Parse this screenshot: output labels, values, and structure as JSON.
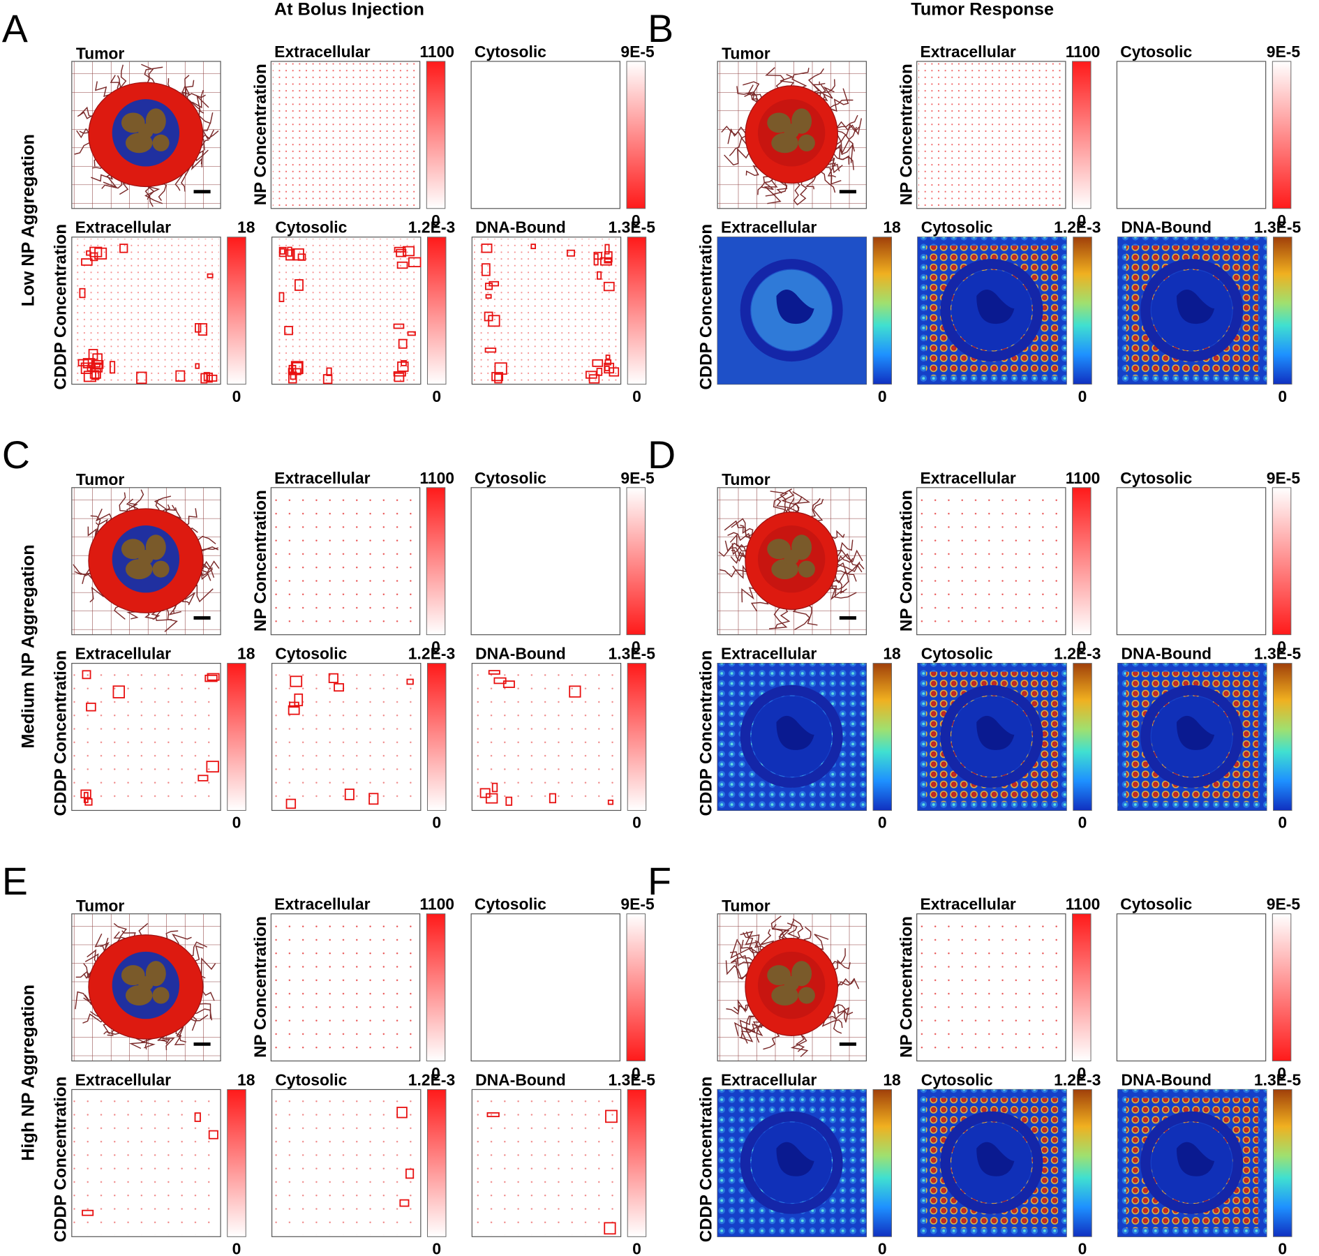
{
  "column_headers": [
    "At Bolus Injection",
    "Tumor Response"
  ],
  "row_labels": [
    "Low NP Aggregation",
    "Medium NP Aggregation",
    "High NP Aggregation"
  ],
  "panels": [
    {
      "letter": "A",
      "tumor_title": "Tumor",
      "np_axis_label": "NP Concentration",
      "cddp_axis_label": "CDDP Concentration",
      "np_maps": [
        {
          "title": "Extracellular",
          "max": "1100",
          "min": "0",
          "colormap": "reds"
        },
        {
          "title": "Cytosolic",
          "max": "9E-5",
          "min": "0",
          "colormap": "reds-reversed"
        }
      ],
      "cddp_maps": [
        {
          "title": "Extracellular",
          "max": "18",
          "min": "0",
          "colormap": "reds"
        },
        {
          "title": "Cytosolic",
          "max": "1.2E-3",
          "min": "0",
          "colormap": "reds"
        },
        {
          "title": "DNA-Bound",
          "max": "1.3E-5",
          "min": "0",
          "colormap": "reds"
        }
      ]
    },
    {
      "letter": "B",
      "tumor_title": "Tumor",
      "np_axis_label": "NP Concentration",
      "cddp_axis_label": "CDDP Concentration",
      "np_maps": [
        {
          "title": "Extracellular",
          "max": "1100",
          "min": "0",
          "colormap": "reds"
        },
        {
          "title": "Cytosolic",
          "max": "9E-5",
          "min": "0",
          "colormap": "reds-reversed"
        }
      ],
      "cddp_maps": [
        {
          "title": "Extracellular",
          "max": "18",
          "min": "0",
          "colormap": "jet"
        },
        {
          "title": "Cytosolic",
          "max": "1.2E-3",
          "min": "0",
          "colormap": "jet"
        },
        {
          "title": "DNA-Bound",
          "max": "1.3E-5",
          "min": "0",
          "colormap": "jet"
        }
      ]
    },
    {
      "letter": "C",
      "tumor_title": "Tumor",
      "np_axis_label": "NP Concentration",
      "cddp_axis_label": "CDDP Concentration",
      "np_maps": [
        {
          "title": "Extracellular",
          "max": "1100",
          "min": "0",
          "colormap": "reds"
        },
        {
          "title": "Cytosolic",
          "max": "9E-5",
          "min": "0",
          "colormap": "reds-reversed"
        }
      ],
      "cddp_maps": [
        {
          "title": "Extracellular",
          "max": "18",
          "min": "0",
          "colormap": "reds"
        },
        {
          "title": "Cytosolic",
          "max": "1.2E-3",
          "min": "0",
          "colormap": "reds"
        },
        {
          "title": "DNA-Bound",
          "max": "1.3E-5",
          "min": "0",
          "colormap": "reds"
        }
      ]
    },
    {
      "letter": "D",
      "tumor_title": "Tumor",
      "np_axis_label": "NP Concentration",
      "cddp_axis_label": "CDDP Concentration",
      "np_maps": [
        {
          "title": "Extracellular",
          "max": "1100",
          "min": "0",
          "colormap": "reds"
        },
        {
          "title": "Cytosolic",
          "max": "9E-5",
          "min": "0",
          "colormap": "reds-reversed"
        }
      ],
      "cddp_maps": [
        {
          "title": "Extracellular",
          "max": "18",
          "min": "0",
          "colormap": "jet"
        },
        {
          "title": "Cytosolic",
          "max": "1.2E-3",
          "min": "0",
          "colormap": "jet"
        },
        {
          "title": "DNA-Bound",
          "max": "1.3E-5",
          "min": "0",
          "colormap": "jet"
        }
      ]
    },
    {
      "letter": "E",
      "tumor_title": "Tumor",
      "np_axis_label": "NP Concentration",
      "cddp_axis_label": "CDDP Concentration",
      "np_maps": [
        {
          "title": "Extracellular",
          "max": "1100",
          "min": "0",
          "colormap": "reds"
        },
        {
          "title": "Cytosolic",
          "max": "9E-5",
          "min": "0",
          "colormap": "reds-reversed"
        }
      ],
      "cddp_maps": [
        {
          "title": "Extracellular",
          "max": "18",
          "min": "0",
          "colormap": "reds"
        },
        {
          "title": "Cytosolic",
          "max": "1.2E-3",
          "min": "0",
          "colormap": "reds"
        },
        {
          "title": "DNA-Bound",
          "max": "1.3E-5",
          "min": "0",
          "colormap": "reds"
        }
      ]
    },
    {
      "letter": "F",
      "tumor_title": "Tumor",
      "np_axis_label": "NP Concentration",
      "cddp_axis_label": "CDDP Concentration",
      "np_maps": [
        {
          "title": "Extracellular",
          "max": "1100",
          "min": "0",
          "colormap": "reds"
        },
        {
          "title": "Cytosolic",
          "max": "9E-5",
          "min": "0",
          "colormap": "reds-reversed"
        }
      ],
      "cddp_maps": [
        {
          "title": "Extracellular",
          "max": "18",
          "min": "0",
          "colormap": "jet"
        },
        {
          "title": "Cytosolic",
          "max": "1.2E-3",
          "min": "0",
          "colormap": "jet"
        },
        {
          "title": "DNA-Bound",
          "max": "1.3E-5",
          "min": "0",
          "colormap": "jet"
        }
      ]
    }
  ]
}
